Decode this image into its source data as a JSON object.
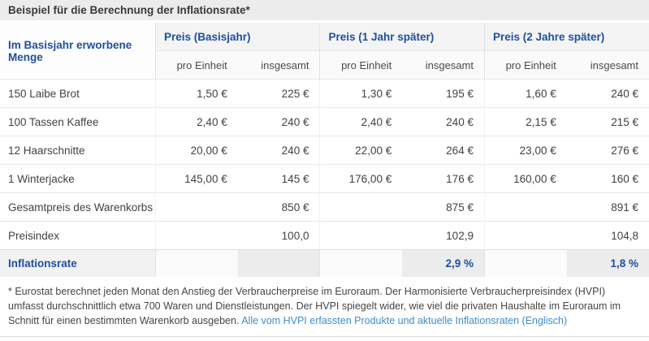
{
  "title": "Beispiel für die Berechnung der Inflationsrate*",
  "colors": {
    "header_blue": "#1e4f9f",
    "link_blue": "#3e8ccb",
    "title_bar_bg": "#ececec",
    "inflation_label_bg": "#f2f2f2",
    "inflation_total_bg": "#ececec"
  },
  "table": {
    "row_header": "Im Basisjahr erworbene Menge",
    "groups": [
      {
        "label": "Preis (Basisjahr)"
      },
      {
        "label": "Preis (1 Jahr später)"
      },
      {
        "label": "Preis (2 Jahre später)"
      }
    ],
    "subheaders": {
      "per_unit": "pro Einheit",
      "total": "insgesamt"
    },
    "rows": [
      {
        "label": "150 Laibe Brot",
        "values": [
          "1,50 €",
          "225 €",
          "1,30 €",
          "195 €",
          "1,60 €",
          "240 €"
        ]
      },
      {
        "label": "100 Tassen Kaffee",
        "values": [
          "2,40 €",
          "240 €",
          "2,40 €",
          "240 €",
          "2,15 €",
          "215 €"
        ]
      },
      {
        "label": "12 Haarschnitte",
        "values": [
          "20,00 €",
          "240 €",
          "22,00 €",
          "264 €",
          "23,00 €",
          "276 €"
        ]
      },
      {
        "label": "1 Winterjacke",
        "values": [
          "145,00 €",
          "145 €",
          "176,00 €",
          "176 €",
          "160,00 €",
          "160 €"
        ]
      },
      {
        "label": "Gesamtpreis des Warenkorbs",
        "values": [
          "",
          "850 €",
          "",
          "875 €",
          "",
          "891 €"
        ]
      },
      {
        "label": "Preisindex",
        "values": [
          "",
          "100,0",
          "",
          "102,9",
          "",
          "104,8"
        ]
      }
    ],
    "inflation_row": {
      "label": "Inflationsrate",
      "values": [
        "",
        "",
        "",
        "2,9 %",
        "",
        "1,8 %"
      ]
    }
  },
  "footnote": {
    "text_before_link": "* Eurostat berechnet jeden Monat den Anstieg der Verbraucherpreise im Euroraum. Der Harmonisierte Verbraucherpreisindex (HVPI) umfasst durchschnittlich etwa 700 Waren und Dienstleistungen. Der HVPI spiegelt wider, wie viel die privaten Haushalte im Euroraum im Schnitt für einen bestimmten Warenkorb ausgeben. ",
    "link_text": "Alle vom HVPI erfassten Produkte und aktuelle Inflationsraten (Englisch)"
  }
}
